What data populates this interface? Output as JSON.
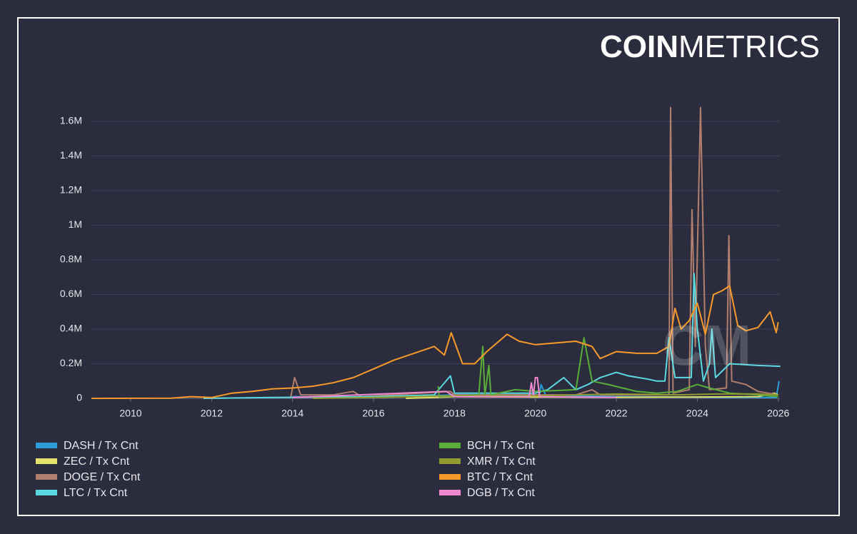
{
  "chart_data": {
    "type": "line",
    "brand_bold": "COIN",
    "brand_light": "METRICS",
    "watermark": "CM",
    "xlim": [
      2009.03,
      2026.04
    ],
    "xticks": [
      2010,
      2012,
      2014,
      2016,
      2018,
      2020,
      2022,
      2024,
      2026
    ],
    "ylim": [
      0,
      1600000
    ],
    "yticks": [
      0,
      {
        "value": 200000,
        "label": "0.2M"
      },
      {
        "value": 400000,
        "label": "0.4M"
      },
      {
        "value": 600000,
        "label": "0.6M"
      },
      {
        "value": 800000,
        "label": "0.8M"
      },
      {
        "value": 1000000,
        "label": "1M"
      },
      {
        "value": 1200000,
        "label": "1.2M"
      },
      {
        "value": 1400000,
        "label": "1.4M"
      },
      {
        "value": 1600000,
        "label": "1.6M"
      }
    ],
    "grid": true,
    "series": [
      {
        "name": "DASH / Tx Cnt",
        "color": "#2e9cdb",
        "x": [
          2014.0,
          2016.0,
          2018.0,
          2019.8,
          2020.1,
          2020.14,
          2020.25,
          2022.0,
          2025.0,
          2025.95,
          2026.02
        ],
        "values": [
          10000,
          5000,
          20000,
          20000,
          20000,
          80000,
          20000,
          10000,
          5000,
          5000,
          100000
        ]
      },
      {
        "name": "ZEC / Tx Cnt",
        "color": "#e3e36b",
        "x": [
          2016.8,
          2018.0,
          2020.0,
          2022.0,
          2024.0,
          2025.5,
          2025.9,
          2026.0
        ],
        "values": [
          0,
          10000,
          8000,
          6000,
          8000,
          10000,
          30000,
          20000
        ]
      },
      {
        "name": "DOGE / Tx Cnt",
        "color": "#b07f6e",
        "x": [
          2013.95,
          2014.05,
          2014.2,
          2015.0,
          2015.5,
          2015.7,
          2017.9,
          2018.0,
          2021.0,
          2021.4,
          2021.6,
          2023.3,
          2023.34,
          2023.4,
          2023.8,
          2023.87,
          2023.95,
          2024.08,
          2024.2,
          2024.3,
          2024.72,
          2024.78,
          2024.85,
          2025.2,
          2025.5,
          2026.0
        ],
        "values": [
          0,
          120000,
          20000,
          20000,
          40000,
          10000,
          40000,
          20000,
          20000,
          50000,
          20000,
          20000,
          1680000,
          30000,
          50000,
          1090000,
          300000,
          1680000,
          300000,
          50000,
          60000,
          940000,
          100000,
          80000,
          40000,
          20000
        ]
      },
      {
        "name": "LTC / Tx Cnt",
        "color": "#5bd9e0",
        "x": [
          2011.8,
          2013.5,
          2016.0,
          2017.5,
          2017.9,
          2018.0,
          2020.0,
          2020.3,
          2020.7,
          2021.0,
          2021.3,
          2021.6,
          2022.0,
          2022.3,
          2022.8,
          2023.0,
          2023.2,
          2023.3,
          2023.45,
          2023.85,
          2023.92,
          2024.0,
          2024.15,
          2024.3,
          2024.36,
          2024.45,
          2024.8,
          2025.5,
          2026.05
        ],
        "values": [
          0,
          5000,
          10000,
          20000,
          130000,
          30000,
          30000,
          50000,
          120000,
          50000,
          80000,
          120000,
          150000,
          130000,
          110000,
          100000,
          100000,
          350000,
          120000,
          120000,
          720000,
          400000,
          100000,
          200000,
          400000,
          120000,
          200000,
          190000,
          185000
        ]
      },
      {
        "name": "BCH / Tx Cnt",
        "color": "#5bad3a",
        "x": [
          2017.6,
          2017.62,
          2018.6,
          2018.7,
          2018.75,
          2018.85,
          2018.9,
          2019.5,
          2020.0,
          2021.0,
          2021.2,
          2021.4,
          2021.8,
          2022.5,
          2023.0,
          2023.5,
          2024.0,
          2024.3,
          2024.8,
          2025.5,
          2026.0
        ],
        "values": [
          70000,
          10000,
          20000,
          300000,
          20000,
          190000,
          20000,
          50000,
          40000,
          50000,
          350000,
          100000,
          80000,
          40000,
          30000,
          40000,
          80000,
          60000,
          30000,
          20000,
          10000
        ]
      },
      {
        "name": "XMR / Tx Cnt",
        "color": "#8f9a2f",
        "x": [
          2014.5,
          2016.0,
          2018.0,
          2020.0,
          2022.0,
          2023.5,
          2024.5,
          2025.5,
          2026.0
        ],
        "values": [
          0,
          5000,
          15000,
          15000,
          25000,
          20000,
          25000,
          25000,
          20000
        ]
      },
      {
        "name": "BTC / Tx Cnt",
        "color": "#f79a2a",
        "x": [
          2009.03,
          2011.0,
          2011.5,
          2012.0,
          2012.5,
          2013.0,
          2013.5,
          2014.0,
          2014.5,
          2015.0,
          2015.5,
          2016.0,
          2016.5,
          2017.0,
          2017.5,
          2017.75,
          2017.92,
          2018.2,
          2018.5,
          2018.8,
          2019.3,
          2019.6,
          2020.0,
          2020.5,
          2021.0,
          2021.4,
          2021.6,
          2022.0,
          2022.5,
          2023.0,
          2023.3,
          2023.45,
          2023.6,
          2023.8,
          2024.0,
          2024.2,
          2024.4,
          2024.6,
          2024.8,
          2025.0,
          2025.2,
          2025.5,
          2025.8,
          2025.95,
          2026.0
        ],
        "values": [
          0,
          1000,
          10000,
          5000,
          30000,
          40000,
          55000,
          60000,
          70000,
          90000,
          120000,
          170000,
          220000,
          260000,
          300000,
          250000,
          379000,
          200000,
          200000,
          270000,
          370000,
          330000,
          310000,
          320000,
          330000,
          300000,
          230000,
          270000,
          260000,
          260000,
          300000,
          520000,
          400000,
          450000,
          550000,
          370000,
          600000,
          620000,
          650000,
          420000,
          390000,
          410000,
          500000,
          380000,
          440000
        ]
      },
      {
        "name": "DGB / Tx Cnt",
        "color": "#f08ad0",
        "x": [
          2014.0,
          2017.8,
          2018.0,
          2019.85,
          2019.9,
          2019.95,
          2020.0,
          2020.05,
          2020.1,
          2022.0
        ],
        "values": [
          5000,
          40000,
          10000,
          10000,
          90000,
          20000,
          120000,
          120000,
          10000,
          5000
        ]
      }
    ]
  }
}
